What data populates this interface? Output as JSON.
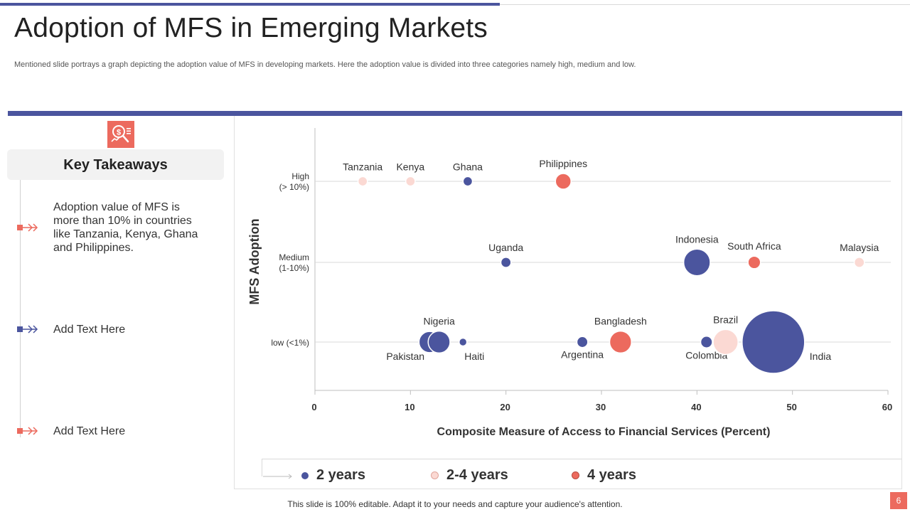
{
  "slide": {
    "title": "Adoption of MFS in Emerging Markets",
    "subtitle": "Mentioned slide portrays a graph depicting the adoption value of MFS  in developing markets. Here the adoption value is divided into three categories namely high, medium and low.",
    "footer": "This slide is 100% editable. Adapt it to your needs and capture your audience's attention.",
    "page_number": "6",
    "colors": {
      "accent_blue": "#4b559e",
      "accent_red": "#ec6a5e",
      "light_pink": "#fbd9d3"
    }
  },
  "takeaways": {
    "title": "Key Takeaways",
    "icon": "money-search-icon",
    "items": [
      {
        "text": "Adoption value  of MFS is more than 10% in countries like Tanzania,  Kenya, Ghana and Philippines.",
        "color": "#ec6a5e"
      },
      {
        "text": "Add Text Here",
        "color": "#4b559e"
      },
      {
        "text": "Add Text Here",
        "color": "#ec6a5e"
      }
    ]
  },
  "legend": [
    {
      "label": "2 years",
      "color": "#4b559e"
    },
    {
      "label": "2-4 years",
      "color": "#fbd9d3"
    },
    {
      "label": "4 years",
      "color": "#ec6a5e"
    }
  ],
  "chart_data": {
    "type": "scatter",
    "subtype": "bubble",
    "title": "",
    "xlabel": "Composite Measure of Access to Financial Services (Percent)",
    "ylabel": "MFS Adoption",
    "xlim": [
      0,
      60
    ],
    "xticks": [
      0,
      10,
      20,
      30,
      40,
      50,
      60
    ],
    "y_categories": [
      {
        "key": "low",
        "label_lines": [
          "low  (<1%)"
        ]
      },
      {
        "key": "medium",
        "label_lines": [
          "Medium",
          "(1-10%)"
        ]
      },
      {
        "key": "high",
        "label_lines": [
          "High",
          "(> 10%)"
        ]
      }
    ],
    "legend_position": "bottom",
    "points": [
      {
        "name": "Tanzania",
        "x": 5,
        "y": "high",
        "series": "2-4 years",
        "size": 1.2,
        "label_pos": "above"
      },
      {
        "name": "Kenya",
        "x": 10,
        "y": "high",
        "series": "2-4 years",
        "size": 1.2,
        "label_pos": "above"
      },
      {
        "name": "Ghana",
        "x": 16,
        "y": "high",
        "series": "2 years",
        "size": 1.2,
        "label_pos": "above"
      },
      {
        "name": "Philippines",
        "x": 26,
        "y": "high",
        "series": "4 years",
        "size": 2,
        "label_pos": "above"
      },
      {
        "name": "Uganda",
        "x": 20,
        "y": "medium",
        "series": "2 years",
        "size": 1.3,
        "label_pos": "above"
      },
      {
        "name": "Indonesia",
        "x": 40,
        "y": "medium",
        "series": "2 years",
        "size": 3.4,
        "label_pos": "above"
      },
      {
        "name": "South Africa",
        "x": 46,
        "y": "medium",
        "series": "4 years",
        "size": 1.6,
        "label_pos": "above"
      },
      {
        "name": "Malaysia",
        "x": 57,
        "y": "medium",
        "series": "2-4 years",
        "size": 1.3,
        "label_pos": "above"
      },
      {
        "name": "Pakistan",
        "x": 12,
        "y": "low",
        "series": "2 years",
        "size": 2.7,
        "label_pos": "below-left"
      },
      {
        "name": "Nigeria",
        "x": 13,
        "y": "low",
        "series": "2 years",
        "size": 2.8,
        "label_pos": "above"
      },
      {
        "name": "Haiti",
        "x": 15.5,
        "y": "low",
        "series": "2 years",
        "size": 1,
        "label_pos": "below-right"
      },
      {
        "name": "Argentina",
        "x": 28,
        "y": "low",
        "series": "2 years",
        "size": 1.4,
        "label_pos": "below"
      },
      {
        "name": "Bangladesh",
        "x": 32,
        "y": "low",
        "series": "4 years",
        "size": 2.8,
        "label_pos": "above"
      },
      {
        "name": "Colombia",
        "x": 41,
        "y": "low",
        "series": "2 years",
        "size": 1.5,
        "label_pos": "below"
      },
      {
        "name": "Brazil",
        "x": 43,
        "y": "low",
        "series": "2-4 years",
        "size": 3.2,
        "label_pos": "above"
      },
      {
        "name": "India",
        "x": 48,
        "y": "low",
        "series": "2 years",
        "size": 8,
        "label_pos": "right"
      }
    ]
  }
}
